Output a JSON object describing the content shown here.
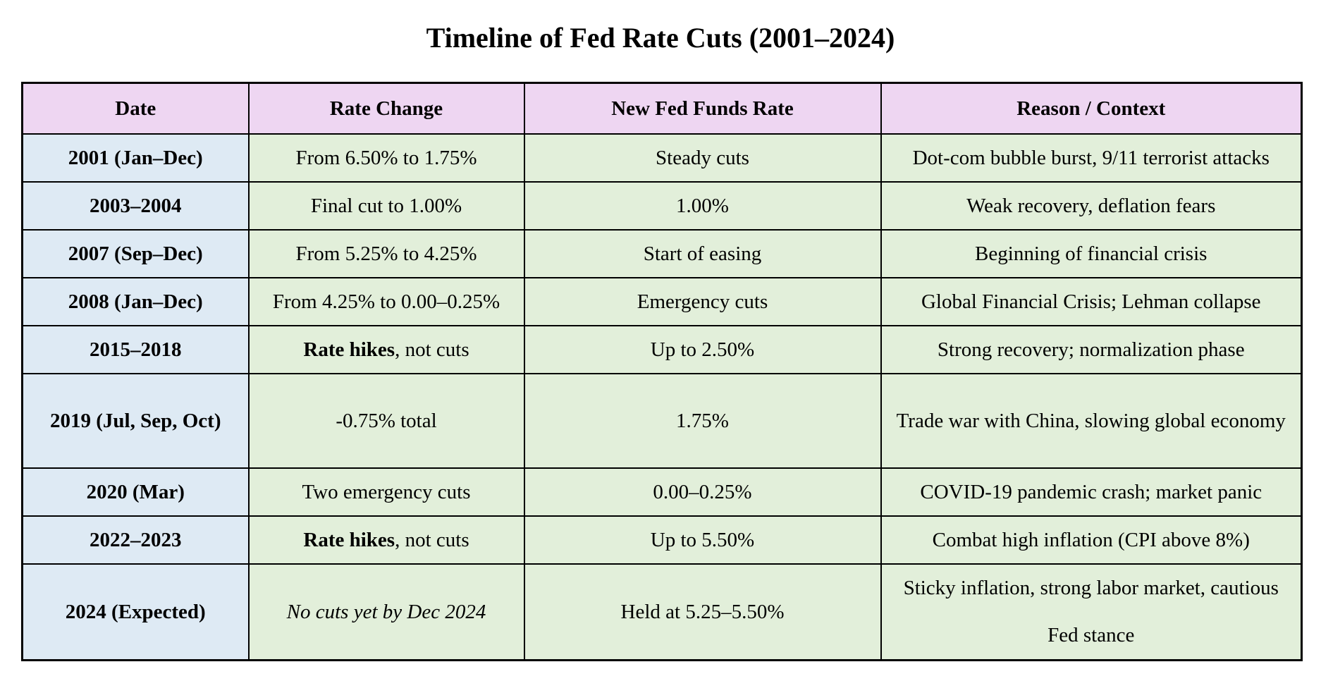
{
  "title": "Timeline of Fed Rate Cuts (2001–2024)",
  "colors": {
    "header_bg": "#eed6f2",
    "date_column_bg": "#deeaf4",
    "body_bg": "#e2efda",
    "border": "#000000"
  },
  "table": {
    "headers": [
      "Date",
      "Rate Change",
      "New Fed Funds Rate",
      "Reason / Context"
    ],
    "rows": [
      {
        "date": "2001 (Jan–Dec)",
        "change_bold": "",
        "change": "From 6.50% to 1.75%",
        "rate": "Steady cuts",
        "reason": "Dot-com bubble burst, 9/11 terrorist attacks"
      },
      {
        "date": "2003–2004",
        "change_bold": "",
        "change": "Final cut to 1.00%",
        "rate": "1.00%",
        "reason": "Weak recovery, deflation fears"
      },
      {
        "date": "2007 (Sep–Dec)",
        "change_bold": "",
        "change": "From 5.25% to 4.25%",
        "rate": "Start of easing",
        "reason": "Beginning of financial crisis"
      },
      {
        "date": "2008 (Jan–Dec)",
        "change_bold": "",
        "change": "From 4.25% to 0.00–0.25%",
        "rate": "Emergency cuts",
        "reason": "Global Financial Crisis; Lehman collapse"
      },
      {
        "date": "2015–2018",
        "change_bold": "Rate hikes",
        "change": ", not cuts",
        "rate": "Up to 2.50%",
        "reason": "Strong recovery; normalization phase"
      },
      {
        "date": "2019 (Jul, Sep, Oct)",
        "change_bold": "",
        "change": "-0.75% total",
        "rate": "1.75%",
        "reason": "Trade war with China, slowing global economy"
      },
      {
        "date": "2020 (Mar)",
        "change_bold": "",
        "change": "Two emergency cuts",
        "rate": "0.00–0.25%",
        "reason": "COVID-19 pandemic crash; market panic"
      },
      {
        "date": "2022–2023",
        "change_bold": "Rate hikes",
        "change": ", not cuts",
        "rate": "Up to 5.50%",
        "reason": "Combat high inflation (CPI above 8%)"
      },
      {
        "date": "2024 (Expected)",
        "change_bold": "",
        "change": "No cuts yet by Dec 2024",
        "rate": "Held at 5.25–5.50%",
        "reason": "Sticky inflation, strong labor market, cautious Fed stance"
      }
    ]
  }
}
